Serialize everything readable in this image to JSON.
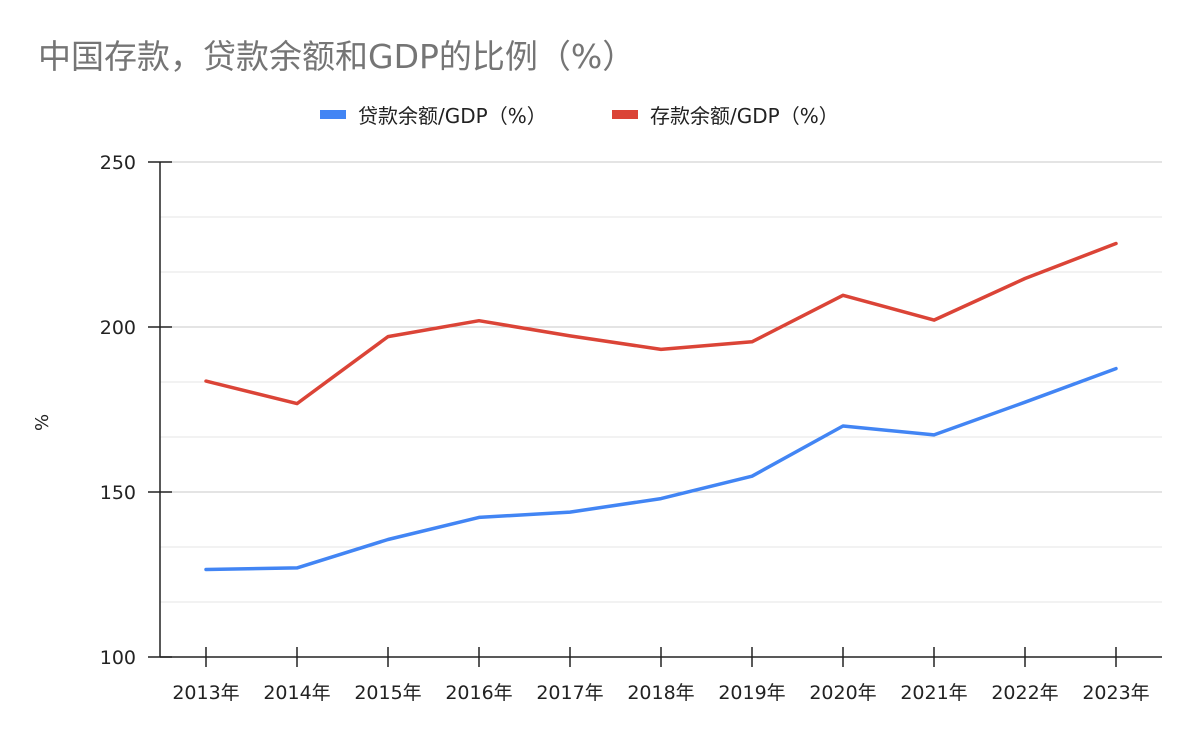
{
  "chart_data": {
    "type": "line",
    "title": "中国存款，贷款余额和GDP的比例（%）",
    "xlabel": "",
    "ylabel": "%",
    "categories": [
      "2013年",
      "2014年",
      "2015年",
      "2016年",
      "2017年",
      "2018年",
      "2019年",
      "2020年",
      "2021年",
      "2022年",
      "2023年"
    ],
    "ylim": [
      100,
      250
    ],
    "yticks": [
      100,
      150,
      200,
      250
    ],
    "grid": true,
    "legend": "top-center",
    "series": [
      {
        "name": "贷款余额/GDP（%）",
        "color": "#4285f4",
        "values": [
          126.5,
          127.0,
          135.6,
          142.3,
          143.9,
          148.0,
          154.8,
          170.0,
          167.3,
          177.2,
          187.4
        ]
      },
      {
        "name": "存款余额/GDP（%）",
        "color": "#db4437",
        "values": [
          183.6,
          176.8,
          197.1,
          201.9,
          197.3,
          193.2,
          195.5,
          209.6,
          202.1,
          214.7,
          225.3
        ]
      }
    ]
  }
}
